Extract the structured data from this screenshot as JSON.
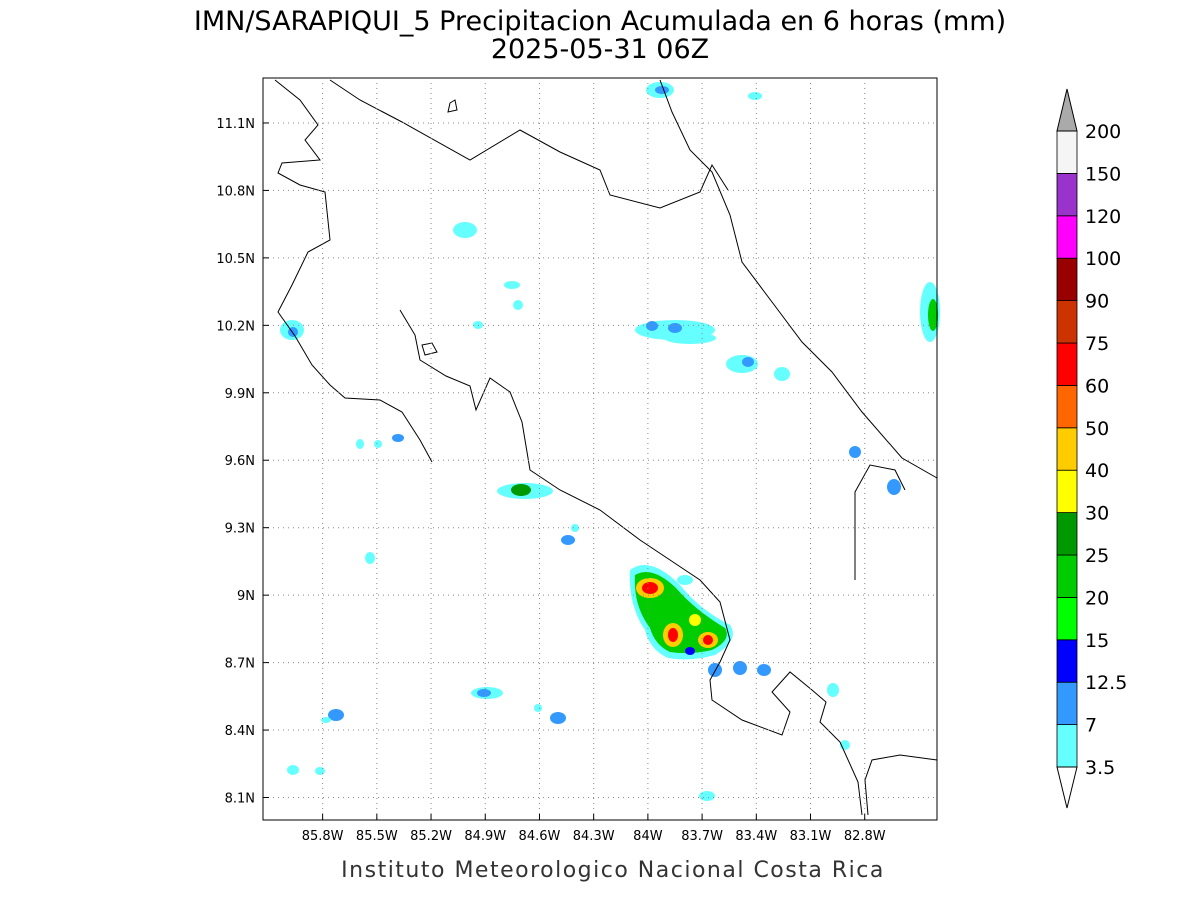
{
  "title": "IMN/SARAPIQUI_5 Precipitacion Acumulada en 6 horas (mm)",
  "subtitle": "2025-05-31 06Z",
  "footer": "Instituto Meteorologico Nacional Costa Rica",
  "map": {
    "xlim": [
      -86.13,
      -82.4
    ],
    "ylim": [
      8.0,
      11.3
    ],
    "grid": true,
    "xticks": [
      {
        "value": -85.8,
        "label": "85.8W"
      },
      {
        "value": -85.5,
        "label": "85.5W"
      },
      {
        "value": -85.2,
        "label": "85.2W"
      },
      {
        "value": -84.9,
        "label": "84.9W"
      },
      {
        "value": -84.6,
        "label": "84.6W"
      },
      {
        "value": -84.3,
        "label": "84.3W"
      },
      {
        "value": -84.0,
        "label": "84W"
      },
      {
        "value": -83.7,
        "label": "83.7W"
      },
      {
        "value": -83.4,
        "label": "83.4W"
      },
      {
        "value": -83.1,
        "label": "83.1W"
      },
      {
        "value": -82.8,
        "label": "82.8W"
      }
    ],
    "yticks": [
      {
        "value": 8.1,
        "label": "8.1N"
      },
      {
        "value": 8.4,
        "label": "8.4N"
      },
      {
        "value": 8.7,
        "label": "8.7N"
      },
      {
        "value": 9.0,
        "label": "9N"
      },
      {
        "value": 9.3,
        "label": "9.3N"
      },
      {
        "value": 9.6,
        "label": "9.6N"
      },
      {
        "value": 9.9,
        "label": "9.9N"
      },
      {
        "value": 10.2,
        "label": "10.2N"
      },
      {
        "value": 10.5,
        "label": "10.5N"
      },
      {
        "value": 10.8,
        "label": "10.8N"
      },
      {
        "value": 11.1,
        "label": "11.1N"
      }
    ]
  },
  "colorbar": {
    "levels": [
      3.5,
      7,
      12.5,
      15,
      20,
      25,
      30,
      40,
      50,
      60,
      75,
      90,
      100,
      120,
      150,
      200
    ],
    "colors": [
      "#66ffff",
      "#3399ff",
      "#0000ff",
      "#00ff00",
      "#00cc00",
      "#009900",
      "#ffff00",
      "#ffcc00",
      "#ff6600",
      "#ff0000",
      "#cc3300",
      "#990000",
      "#ff00ff",
      "#9933cc",
      "#f5f5f5"
    ],
    "under_color": "#ffffff",
    "over_color": "#aaaaaa"
  }
}
